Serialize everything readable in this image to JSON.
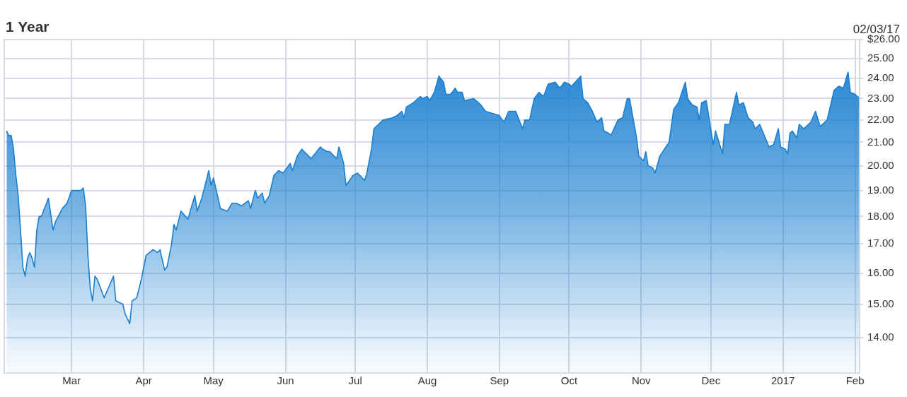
{
  "chart_data": {
    "type": "area",
    "title": "1 Year",
    "annotations": [
      "02/03/17"
    ],
    "color": "#1a7fd0",
    "log": "y",
    "grid": true,
    "xlim": [
      "2016-02-01",
      "2017-02-03"
    ],
    "xticks": [
      {
        "value": "2016-03-01",
        "label": "Mar"
      },
      {
        "value": "2016-04-01",
        "label": "Apr"
      },
      {
        "value": "2016-05-01",
        "label": "May"
      },
      {
        "value": "2016-06-01",
        "label": "Jun"
      },
      {
        "value": "2016-07-01",
        "label": "Jul"
      },
      {
        "value": "2016-08-01",
        "label": "Aug"
      },
      {
        "value": "2016-09-01",
        "label": "Sep"
      },
      {
        "value": "2016-10-01",
        "label": "Oct"
      },
      {
        "value": "2016-11-01",
        "label": "Nov"
      },
      {
        "value": "2016-12-01",
        "label": "Dec"
      },
      {
        "value": "2017-01-01",
        "label": "2017"
      },
      {
        "value": "2017-02-01",
        "label": "Feb"
      }
    ],
    "ylim": [
      13,
      26
    ],
    "yticks": [
      {
        "value": 14,
        "label": "14.00"
      },
      {
        "value": 15,
        "label": "15.00"
      },
      {
        "value": 16,
        "label": "16.00"
      },
      {
        "value": 17,
        "label": "17.00"
      },
      {
        "value": 18,
        "label": "18.00"
      },
      {
        "value": 19,
        "label": "19.00"
      },
      {
        "value": 20,
        "label": "20.00"
      },
      {
        "value": 21,
        "label": "21.00"
      },
      {
        "value": 22,
        "label": "22.00"
      },
      {
        "value": 23,
        "label": "23.00"
      },
      {
        "value": 24,
        "label": "24.00"
      },
      {
        "value": 25,
        "label": "25.00"
      },
      {
        "value": 26,
        "label": "$26.00"
      }
    ],
    "x": [
      "2016-02-02",
      "2016-02-03",
      "2016-02-04",
      "2016-02-05",
      "2016-02-06",
      "2016-02-07",
      "2016-02-08",
      "2016-02-09",
      "2016-02-10",
      "2016-02-11",
      "2016-02-12",
      "2016-02-13",
      "2016-02-14",
      "2016-02-15",
      "2016-02-16",
      "2016-02-17",
      "2016-02-20",
      "2016-02-22",
      "2016-02-23",
      "2016-02-26",
      "2016-02-28",
      "2016-03-01",
      "2016-03-05",
      "2016-03-06",
      "2016-03-07",
      "2016-03-08",
      "2016-03-09",
      "2016-03-10",
      "2016-03-11",
      "2016-03-12",
      "2016-03-15",
      "2016-03-19",
      "2016-03-20",
      "2016-03-23",
      "2016-03-24",
      "2016-03-26",
      "2016-03-27",
      "2016-03-29",
      "2016-03-31",
      "2016-04-02",
      "2016-04-05",
      "2016-04-07",
      "2016-04-08",
      "2016-04-10",
      "2016-04-11",
      "2016-04-13",
      "2016-04-14",
      "2016-04-15",
      "2016-04-17",
      "2016-04-20",
      "2016-04-23",
      "2016-04-24",
      "2016-04-26",
      "2016-04-29",
      "2016-04-30",
      "2016-05-01",
      "2016-05-04",
      "2016-05-07",
      "2016-05-09",
      "2016-05-11",
      "2016-05-13",
      "2016-05-16",
      "2016-05-17",
      "2016-05-19",
      "2016-05-20",
      "2016-05-22",
      "2016-05-23",
      "2016-05-25",
      "2016-05-27",
      "2016-05-29",
      "2016-05-31",
      "2016-06-03",
      "2016-06-04",
      "2016-06-06",
      "2016-06-08",
      "2016-06-10",
      "2016-06-12",
      "2016-06-16",
      "2016-06-17",
      "2016-06-19",
      "2016-06-20",
      "2016-06-23",
      "2016-06-24",
      "2016-06-26",
      "2016-06-27",
      "2016-06-30",
      "2016-07-02",
      "2016-07-05",
      "2016-07-06",
      "2016-07-08",
      "2016-07-09",
      "2016-07-13",
      "2016-07-17",
      "2016-07-19",
      "2016-07-21",
      "2016-07-22",
      "2016-07-23",
      "2016-07-26",
      "2016-07-29",
      "2016-07-30",
      "2016-08-01",
      "2016-08-02",
      "2016-08-04",
      "2016-08-06",
      "2016-08-08",
      "2016-08-09",
      "2016-08-11",
      "2016-08-13",
      "2016-08-14",
      "2016-08-16",
      "2016-08-17",
      "2016-08-21",
      "2016-08-24",
      "2016-08-26",
      "2016-08-29",
      "2016-09-01",
      "2016-09-03",
      "2016-09-05",
      "2016-09-08",
      "2016-09-11",
      "2016-09-12",
      "2016-09-14",
      "2016-09-16",
      "2016-09-18",
      "2016-09-20",
      "2016-09-22",
      "2016-09-25",
      "2016-09-27",
      "2016-09-29",
      "2016-10-01",
      "2016-10-02",
      "2016-10-06",
      "2016-10-07",
      "2016-10-09",
      "2016-10-11",
      "2016-10-13",
      "2016-10-15",
      "2016-10-16",
      "2016-10-18",
      "2016-10-19",
      "2016-10-22",
      "2016-10-24",
      "2016-10-26",
      "2016-10-27",
      "2016-10-30",
      "2016-10-31",
      "2016-11-02",
      "2016-11-03",
      "2016-11-04",
      "2016-11-06",
      "2016-11-07",
      "2016-11-09",
      "2016-11-11",
      "2016-11-13",
      "2016-11-15",
      "2016-11-17",
      "2016-11-20",
      "2016-11-21",
      "2016-11-23",
      "2016-11-25",
      "2016-11-26",
      "2016-11-27",
      "2016-11-29",
      "2016-12-02",
      "2016-12-03",
      "2016-12-06",
      "2016-12-07",
      "2016-12-09",
      "2016-12-12",
      "2016-12-13",
      "2016-12-15",
      "2016-12-17",
      "2016-12-19",
      "2016-12-20",
      "2016-12-22",
      "2016-12-26",
      "2016-12-28",
      "2016-12-30",
      "2016-12-31",
      "2017-01-02",
      "2017-01-03",
      "2017-01-04",
      "2017-01-05",
      "2017-01-07",
      "2017-01-08",
      "2017-01-10",
      "2017-01-13",
      "2017-01-15",
      "2017-01-17",
      "2017-01-20",
      "2017-01-23",
      "2017-01-25",
      "2017-01-27",
      "2017-01-29",
      "2017-01-30",
      "2017-02-01",
      "2017-02-03"
    ],
    "values": [
      21.5,
      21.3,
      21.3,
      20.7,
      19.6,
      18.8,
      17.5,
      16.2,
      15.9,
      16.5,
      16.7,
      16.5,
      16.2,
      17.5,
      18.0,
      18.0,
      18.7,
      17.5,
      17.8,
      18.3,
      18.5,
      19.0,
      19.0,
      19.1,
      18.4,
      16.6,
      15.5,
      15.1,
      15.9,
      15.8,
      15.2,
      15.9,
      15.1,
      15.0,
      14.7,
      14.4,
      15.1,
      15.2,
      15.8,
      16.6,
      16.8,
      16.7,
      16.8,
      16.1,
      16.2,
      17.0,
      17.7,
      17.5,
      18.2,
      17.9,
      18.8,
      18.2,
      18.7,
      19.8,
      19.2,
      19.5,
      18.3,
      18.2,
      18.5,
      18.5,
      18.4,
      18.6,
      18.3,
      19.0,
      18.7,
      18.9,
      18.5,
      18.8,
      19.6,
      19.8,
      19.7,
      20.1,
      19.8,
      20.4,
      20.7,
      20.5,
      20.3,
      20.8,
      20.7,
      20.6,
      20.6,
      20.3,
      20.8,
      20.1,
      19.2,
      19.6,
      19.7,
      19.4,
      19.7,
      20.7,
      21.6,
      22.0,
      22.1,
      22.2,
      22.4,
      22.1,
      22.6,
      22.8,
      23.1,
      23.0,
      23.1,
      22.9,
      23.3,
      24.1,
      23.8,
      23.2,
      23.2,
      23.5,
      23.3,
      23.3,
      22.9,
      23.0,
      22.7,
      22.4,
      22.3,
      22.2,
      21.9,
      22.4,
      22.4,
      21.6,
      22.0,
      22.0,
      23.0,
      23.3,
      23.1,
      23.7,
      23.8,
      23.5,
      23.8,
      23.7,
      23.6,
      24.1,
      23.0,
      22.8,
      22.4,
      21.9,
      22.1,
      21.5,
      21.4,
      21.3,
      22.0,
      22.1,
      23.0,
      23.0,
      21.2,
      20.4,
      20.2,
      20.6,
      20.0,
      19.9,
      19.7,
      20.4,
      20.7,
      21.0,
      22.5,
      22.8,
      23.8,
      23.0,
      22.7,
      22.6,
      22.0,
      22.8,
      22.9,
      20.9,
      21.5,
      20.5,
      21.8,
      21.8,
      23.3,
      22.7,
      22.8,
      22.1,
      21.9,
      21.6,
      21.8,
      20.8,
      20.9,
      21.6,
      20.8,
      20.7,
      20.5,
      21.4,
      21.5,
      21.2,
      21.8,
      21.6,
      21.9,
      22.4,
      21.7,
      22.0,
      23.4,
      23.6,
      23.5,
      24.3,
      23.3,
      23.2,
      23.0
    ]
  }
}
